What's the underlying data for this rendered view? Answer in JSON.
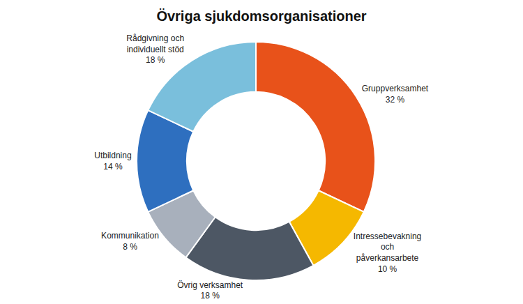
{
  "chart_data": {
    "type": "donut",
    "title": "Övriga sjukdomsorganisationer",
    "categories": [
      "Gruppverksamhet\n32 %",
      "Intressebevakning\noch\npåverkansarbete\n10 %",
      "Övrig verksamhet\n18 %",
      "Kommunikation\n8 %",
      "Utbildning\n14 %",
      "Rådgivning och\nindividuellt stöd\n18 %"
    ],
    "values": [
      32,
      10,
      18,
      8,
      14,
      18
    ],
    "colors": [
      "#E8521A",
      "#F5B800",
      "#4D5764",
      "#A8B0BC",
      "#2E6FBF",
      "#7ABFDC"
    ]
  }
}
